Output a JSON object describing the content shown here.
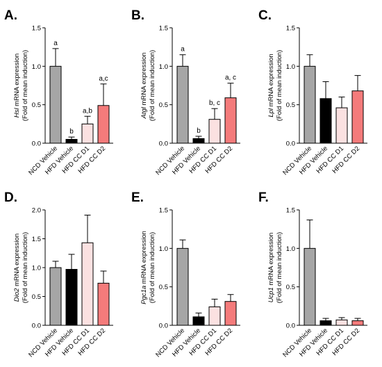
{
  "chart_data": [
    {
      "type": "bar",
      "panel": "A.",
      "gene": "Hsl",
      "ylabel_suffix": " mRNA expression",
      "ylabel_line2": "(Fold of mean induction)",
      "categories": [
        "NCD Vehicle",
        "HFD Vehicle",
        "HFD CC D1",
        "HFD CC D2"
      ],
      "values": [
        1.0,
        0.05,
        0.25,
        0.49
      ],
      "errors": [
        0.23,
        0.03,
        0.1,
        0.28
      ],
      "significance": [
        "a",
        "b",
        "a,b",
        "a,c"
      ],
      "ylim": [
        0,
        1.5
      ],
      "yticks": [
        "0.0",
        "0.5",
        "1.0",
        "1.5"
      ]
    },
    {
      "type": "bar",
      "panel": "B.",
      "gene": "Atgl",
      "ylabel_suffix": " mRNA expression",
      "ylabel_line2": "(Fold of mean induction)",
      "categories": [
        "NCD Vehicle",
        "HFD Vehicle",
        "HFD CC D1",
        "HFD CC D2"
      ],
      "values": [
        1.0,
        0.06,
        0.31,
        0.59
      ],
      "errors": [
        0.15,
        0.03,
        0.14,
        0.19
      ],
      "significance": [
        "a",
        "b",
        "b, c",
        "a, c"
      ],
      "ylim": [
        0,
        1.5
      ],
      "yticks": [
        "0.0",
        "0.5",
        "1.0",
        "1.5"
      ]
    },
    {
      "type": "bar",
      "panel": "C.",
      "gene": "Lpl",
      "ylabel_suffix": " mRNA expression",
      "ylabel_line2": "(Fold of mean induction)",
      "categories": [
        "NCD Vehicle",
        "HFD Vehicle",
        "HFD CC D1",
        "HFD CC D2"
      ],
      "values": [
        1.0,
        0.58,
        0.46,
        0.68
      ],
      "errors": [
        0.15,
        0.22,
        0.14,
        0.2
      ],
      "significance": [
        "",
        "",
        "",
        ""
      ],
      "ylim": [
        0,
        1.5
      ],
      "yticks": [
        "0.0",
        "0.5",
        "1.0",
        "1.5"
      ]
    },
    {
      "type": "bar",
      "panel": "D.",
      "gene": "Dio2",
      "ylabel_suffix": " mRNA expression",
      "ylabel_line2": "(Fold of mean induction)",
      "categories": [
        "NCD Vehicle",
        "HFD Vehicle",
        "HFD CC D1",
        "HFD CC D2"
      ],
      "values": [
        1.0,
        0.97,
        1.43,
        0.73
      ],
      "errors": [
        0.11,
        0.26,
        0.48,
        0.21
      ],
      "significance": [
        "",
        "",
        "",
        ""
      ],
      "ylim": [
        0,
        2.0
      ],
      "yticks": [
        "0.0",
        "0.5",
        "1.0",
        "1.5",
        "2.0"
      ]
    },
    {
      "type": "bar",
      "panel": "E.",
      "gene": "Pgc1a",
      "ylabel_suffix": " mRNA expression",
      "ylabel_line2": "(Fold of mean induction)",
      "categories": [
        "NCD Vehicle",
        "HFD Vehicle",
        "HFD CC D1",
        "HFD CC D2"
      ],
      "values": [
        1.0,
        0.11,
        0.24,
        0.31
      ],
      "errors": [
        0.11,
        0.05,
        0.1,
        0.09
      ],
      "significance": [
        "",
        "",
        "",
        ""
      ],
      "ylim": [
        0,
        1.5
      ],
      "yticks": [
        "0.0",
        "0.5",
        "1.0",
        "1.5"
      ]
    },
    {
      "type": "bar",
      "panel": "F.",
      "gene": "Ucp1",
      "ylabel_suffix": " mRNA expression",
      "ylabel_line2": "(Fold of mean induction)",
      "categories": [
        "NCD Vehicle",
        "HFD Vehicle",
        "HFD CC D1",
        "HFD CC D2"
      ],
      "values": [
        1.0,
        0.06,
        0.07,
        0.06
      ],
      "errors": [
        0.37,
        0.03,
        0.03,
        0.03
      ],
      "significance": [
        "",
        "",
        "",
        ""
      ],
      "ylim": [
        0,
        1.5
      ],
      "yticks": [
        "0.0",
        "0.5",
        "1.0",
        "1.5"
      ]
    }
  ],
  "bar_colors": [
    "#a6a6a6",
    "#000000",
    "#fbe1e1",
    "#f47b7b"
  ]
}
